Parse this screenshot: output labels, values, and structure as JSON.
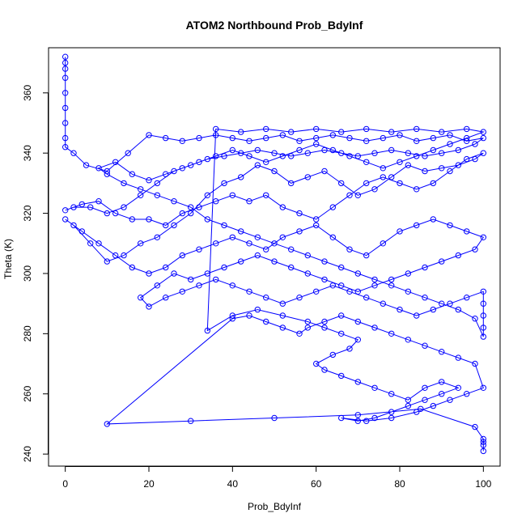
{
  "chart_data": {
    "type": "scatter",
    "title": "ATOM2 Northbound Prob_BdyInf",
    "xlabel": "Prob_BdyInf",
    "ylabel": "Theta (K)",
    "xlim": [
      -4,
      104
    ],
    "ylim": [
      236,
      375
    ],
    "x_ticks": [
      0,
      20,
      40,
      60,
      80,
      100
    ],
    "y_ticks": [
      240,
      260,
      280,
      300,
      320,
      340,
      360
    ],
    "grid": false,
    "legend": "none",
    "point_style": "open-circle",
    "connect_points": true,
    "series": [
      {
        "color": "#0000ff",
        "points": [
          [
            0,
            372
          ],
          [
            0,
            370
          ],
          [
            0,
            368
          ],
          [
            0,
            365
          ],
          [
            0,
            360
          ],
          [
            0,
            355
          ],
          [
            0,
            350
          ],
          [
            0,
            345
          ],
          [
            0,
            342
          ],
          [
            2,
            340
          ],
          [
            5,
            336
          ],
          [
            10,
            334
          ],
          [
            15,
            340
          ],
          [
            20,
            346
          ],
          [
            24,
            345
          ],
          [
            28,
            344
          ],
          [
            32,
            345
          ],
          [
            36,
            346
          ],
          [
            40,
            345
          ],
          [
            44,
            344
          ],
          [
            48,
            345
          ],
          [
            52,
            346
          ],
          [
            56,
            344
          ],
          [
            60,
            345
          ],
          [
            64,
            346
          ],
          [
            68,
            345
          ],
          [
            72,
            344
          ],
          [
            76,
            345
          ],
          [
            80,
            346
          ],
          [
            84,
            344
          ],
          [
            88,
            345
          ],
          [
            92,
            346
          ],
          [
            96,
            344
          ],
          [
            100,
            345
          ],
          [
            98,
            343
          ],
          [
            94,
            341
          ],
          [
            90,
            340
          ],
          [
            86,
            339
          ],
          [
            82,
            340
          ],
          [
            78,
            341
          ],
          [
            74,
            340
          ],
          [
            70,
            339
          ],
          [
            66,
            340
          ],
          [
            62,
            341
          ],
          [
            58,
            340
          ],
          [
            54,
            339
          ],
          [
            50,
            340
          ],
          [
            46,
            341
          ],
          [
            42,
            340
          ],
          [
            38,
            339
          ],
          [
            34,
            338
          ],
          [
            30,
            336
          ],
          [
            26,
            334
          ],
          [
            22,
            330
          ],
          [
            18,
            326
          ],
          [
            14,
            322
          ],
          [
            10,
            320
          ],
          [
            6,
            322
          ],
          [
            2,
            322
          ],
          [
            0,
            321
          ],
          [
            4,
            323
          ],
          [
            8,
            324
          ],
          [
            12,
            320
          ],
          [
            16,
            318
          ],
          [
            20,
            318
          ],
          [
            24,
            316
          ],
          [
            28,
            320
          ],
          [
            32,
            322
          ],
          [
            36,
            324
          ],
          [
            40,
            326
          ],
          [
            44,
            324
          ],
          [
            48,
            326
          ],
          [
            52,
            322
          ],
          [
            56,
            320
          ],
          [
            60,
            318
          ],
          [
            64,
            322
          ],
          [
            68,
            326
          ],
          [
            72,
            330
          ],
          [
            76,
            332
          ],
          [
            80,
            330
          ],
          [
            84,
            328
          ],
          [
            88,
            330
          ],
          [
            92,
            334
          ],
          [
            96,
            338
          ],
          [
            100,
            340
          ],
          [
            98,
            338
          ],
          [
            94,
            336
          ],
          [
            90,
            335
          ],
          [
            86,
            334
          ],
          [
            82,
            336
          ],
          [
            78,
            332
          ],
          [
            74,
            328
          ],
          [
            70,
            326
          ],
          [
            66,
            330
          ],
          [
            62,
            334
          ],
          [
            58,
            332
          ],
          [
            54,
            330
          ],
          [
            50,
            334
          ],
          [
            46,
            336
          ],
          [
            42,
            332
          ],
          [
            38,
            330
          ],
          [
            34,
            326
          ],
          [
            30,
            320
          ],
          [
            26,
            316
          ],
          [
            22,
            312
          ],
          [
            18,
            310
          ],
          [
            14,
            306
          ],
          [
            10,
            304
          ],
          [
            6,
            310
          ],
          [
            2,
            316
          ],
          [
            0,
            318
          ],
          [
            4,
            314
          ],
          [
            8,
            310
          ],
          [
            12,
            306
          ],
          [
            16,
            302
          ],
          [
            20,
            300
          ],
          [
            24,
            302
          ],
          [
            28,
            306
          ],
          [
            32,
            308
          ],
          [
            36,
            310
          ],
          [
            40,
            312
          ],
          [
            44,
            310
          ],
          [
            48,
            308
          ],
          [
            52,
            312
          ],
          [
            56,
            314
          ],
          [
            60,
            316
          ],
          [
            64,
            312
          ],
          [
            68,
            308
          ],
          [
            72,
            306
          ],
          [
            76,
            310
          ],
          [
            80,
            314
          ],
          [
            84,
            316
          ],
          [
            88,
            318
          ],
          [
            92,
            316
          ],
          [
            96,
            314
          ],
          [
            100,
            312
          ],
          [
            98,
            308
          ],
          [
            94,
            306
          ],
          [
            90,
            304
          ],
          [
            86,
            302
          ],
          [
            82,
            300
          ],
          [
            78,
            298
          ],
          [
            74,
            296
          ],
          [
            70,
            294
          ],
          [
            66,
            296
          ],
          [
            62,
            298
          ],
          [
            58,
            300
          ],
          [
            54,
            302
          ],
          [
            50,
            304
          ],
          [
            46,
            306
          ],
          [
            42,
            304
          ],
          [
            38,
            302
          ],
          [
            34,
            300
          ],
          [
            30,
            298
          ],
          [
            26,
            300
          ],
          [
            22,
            296
          ],
          [
            18,
            292
          ],
          [
            20,
            289
          ],
          [
            24,
            292
          ],
          [
            28,
            294
          ],
          [
            32,
            296
          ],
          [
            36,
            298
          ],
          [
            40,
            296
          ],
          [
            44,
            294
          ],
          [
            48,
            292
          ],
          [
            52,
            290
          ],
          [
            56,
            292
          ],
          [
            60,
            294
          ],
          [
            64,
            296
          ],
          [
            68,
            294
          ],
          [
            72,
            292
          ],
          [
            76,
            290
          ],
          [
            80,
            288
          ],
          [
            84,
            286
          ],
          [
            88,
            288
          ],
          [
            92,
            290
          ],
          [
            96,
            292
          ],
          [
            100,
            294
          ],
          [
            100,
            290
          ],
          [
            100,
            286
          ],
          [
            100,
            282
          ],
          [
            100,
            279
          ],
          [
            98,
            285
          ],
          [
            94,
            288
          ],
          [
            90,
            290
          ],
          [
            86,
            292
          ],
          [
            82,
            294
          ],
          [
            78,
            296
          ],
          [
            74,
            298
          ],
          [
            70,
            300
          ],
          [
            66,
            302
          ],
          [
            62,
            304
          ],
          [
            58,
            306
          ],
          [
            54,
            308
          ],
          [
            50,
            310
          ],
          [
            46,
            312
          ],
          [
            42,
            314
          ],
          [
            38,
            316
          ],
          [
            34,
            318
          ],
          [
            30,
            322
          ],
          [
            26,
            324
          ],
          [
            22,
            326
          ],
          [
            18,
            328
          ],
          [
            14,
            330
          ],
          [
            10,
            333
          ],
          [
            8,
            335
          ],
          [
            12,
            337
          ],
          [
            16,
            333
          ],
          [
            20,
            331
          ],
          [
            24,
            333
          ],
          [
            28,
            335
          ],
          [
            32,
            337
          ],
          [
            36,
            339
          ],
          [
            40,
            341
          ],
          [
            44,
            339
          ],
          [
            48,
            337
          ],
          [
            52,
            339
          ],
          [
            56,
            341
          ],
          [
            60,
            343
          ],
          [
            64,
            341
          ],
          [
            68,
            339
          ],
          [
            72,
            337
          ],
          [
            76,
            335
          ],
          [
            80,
            337
          ],
          [
            84,
            339
          ],
          [
            88,
            341
          ],
          [
            92,
            343
          ],
          [
            96,
            345
          ],
          [
            100,
            347
          ],
          [
            96,
            348
          ],
          [
            90,
            347
          ],
          [
            84,
            348
          ],
          [
            78,
            347
          ],
          [
            72,
            348
          ],
          [
            66,
            347
          ],
          [
            60,
            348
          ],
          [
            54,
            347
          ],
          [
            48,
            348
          ],
          [
            42,
            347
          ],
          [
            36,
            348
          ],
          [
            34,
            281
          ],
          [
            40,
            286
          ],
          [
            46,
            288
          ],
          [
            52,
            286
          ],
          [
            58,
            284
          ],
          [
            62,
            282
          ],
          [
            66,
            280
          ],
          [
            70,
            278
          ],
          [
            68,
            275
          ],
          [
            64,
            273
          ],
          [
            60,
            270
          ],
          [
            62,
            268
          ],
          [
            66,
            266
          ],
          [
            70,
            264
          ],
          [
            74,
            262
          ],
          [
            78,
            260
          ],
          [
            82,
            258
          ],
          [
            86,
            262
          ],
          [
            90,
            264
          ],
          [
            94,
            262
          ],
          [
            90,
            260
          ],
          [
            86,
            258
          ],
          [
            82,
            256
          ],
          [
            78,
            254
          ],
          [
            74,
            252
          ],
          [
            70,
            251
          ],
          [
            66,
            252
          ],
          [
            72,
            251
          ],
          [
            78,
            252
          ],
          [
            84,
            254
          ],
          [
            88,
            256
          ],
          [
            92,
            258
          ],
          [
            96,
            260
          ],
          [
            100,
            262
          ],
          [
            98,
            270
          ],
          [
            94,
            272
          ],
          [
            90,
            274
          ],
          [
            86,
            276
          ],
          [
            82,
            278
          ],
          [
            78,
            280
          ],
          [
            74,
            282
          ],
          [
            70,
            284
          ],
          [
            66,
            286
          ],
          [
            62,
            284
          ],
          [
            58,
            282
          ],
          [
            56,
            280
          ],
          [
            52,
            282
          ],
          [
            48,
            284
          ],
          [
            44,
            286
          ],
          [
            40,
            285
          ],
          [
            10,
            250
          ],
          [
            30,
            251
          ],
          [
            50,
            252
          ],
          [
            70,
            253
          ],
          [
            85,
            255
          ],
          [
            98,
            249
          ],
          [
            100,
            245
          ],
          [
            100,
            243
          ],
          [
            100,
            241
          ],
          [
            100,
            244
          ]
        ]
      }
    ]
  }
}
